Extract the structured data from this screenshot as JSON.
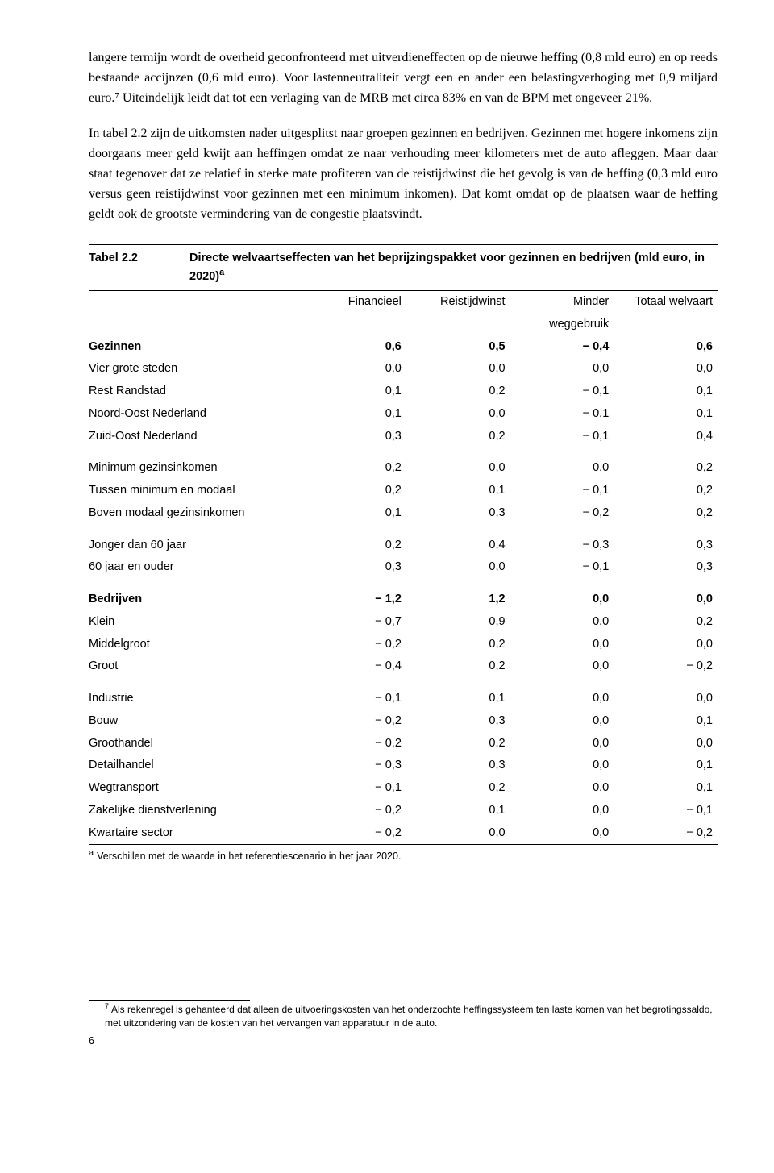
{
  "body": {
    "para1": "langere termijn wordt de overheid geconfronteerd met uitverdieneffecten op de nieuwe heffing (0,8 mld euro) en op reeds bestaande accijnzen (0,6 mld euro). Voor lastenneutraliteit vergt een en ander een belastingverhoging met 0,9 miljard euro.⁷ Uiteindelijk leidt dat tot een verlaging van de MRB met circa 83% en van de BPM met ongeveer 21%.",
    "para2": "In tabel 2.2 zijn de uitkomsten nader uitgesplitst naar groepen gezinnen en bedrijven. Gezinnen met hogere inkomens zijn doorgaans meer geld kwijt aan heffingen omdat ze naar verhouding meer kilometers met de auto afleggen. Maar daar staat tegenover dat ze relatief in sterke mate profiteren van de reistijdwinst die het gevolg is van de heffing (0,3 mld euro versus geen reistijdwinst voor gezinnen met een minimum inkomen). Dat komt omdat op de plaatsen waar de heffing geldt ook de grootste vermindering van de congestie plaatsvindt."
  },
  "table": {
    "label": "Tabel 2.2",
    "caption_l1": "Directe welvaartseffecten van het beprijzingspakket voor gezinnen en bedrijven (mld euro, in",
    "caption_l2": "2020)",
    "sup": "a",
    "head": {
      "c1": "Financieel",
      "c2": "Reistijdwinst",
      "c3a": "Minder",
      "c3b": "weggebruik",
      "c4": "Totaal welvaart"
    },
    "rows": [
      {
        "label": "Gezinnen",
        "v": [
          "0,6",
          "0,5",
          "− 0,4",
          "0,6"
        ],
        "bold": true
      },
      {
        "label": "Vier grote steden",
        "v": [
          "0,0",
          "0,0",
          "0,0",
          "0,0"
        ]
      },
      {
        "label": "Rest Randstad",
        "v": [
          "0,1",
          "0,2",
          "− 0,1",
          "0,1"
        ]
      },
      {
        "label": "Noord-Oost Nederland",
        "v": [
          "0,1",
          "0,0",
          "− 0,1",
          "0,1"
        ]
      },
      {
        "label": "Zuid-Oost Nederland",
        "v": [
          "0,3",
          "0,2",
          "− 0,1",
          "0,4"
        ]
      },
      {
        "label": "Minimum gezinsinkomen",
        "v": [
          "0,2",
          "0,0",
          "0,0",
          "0,2"
        ],
        "gap": true
      },
      {
        "label": "Tussen minimum en modaal",
        "v": [
          "0,2",
          "0,1",
          "− 0,1",
          "0,2"
        ]
      },
      {
        "label": "Boven modaal gezinsinkomen",
        "v": [
          "0,1",
          "0,3",
          "− 0,2",
          "0,2"
        ]
      },
      {
        "label": "Jonger dan 60 jaar",
        "v": [
          "0,2",
          "0,4",
          "− 0,3",
          "0,3"
        ],
        "gap": true
      },
      {
        "label": "60 jaar en ouder",
        "v": [
          "0,3",
          "0,0",
          "− 0,1",
          "0,3"
        ]
      },
      {
        "label": "Bedrijven",
        "v": [
          "− 1,2",
          "1,2",
          "0,0",
          "0,0"
        ],
        "bold": true,
        "gap": true
      },
      {
        "label": "Klein",
        "v": [
          "− 0,7",
          "0,9",
          "0,0",
          "0,2"
        ]
      },
      {
        "label": "Middelgroot",
        "v": [
          "− 0,2",
          "0,2",
          "0,0",
          "0,0"
        ]
      },
      {
        "label": "Groot",
        "v": [
          "− 0,4",
          "0,2",
          "0,0",
          "− 0,2"
        ]
      },
      {
        "label": "Industrie",
        "v": [
          "− 0,1",
          "0,1",
          "0,0",
          "0,0"
        ],
        "gap": true
      },
      {
        "label": "Bouw",
        "v": [
          "− 0,2",
          "0,3",
          "0,0",
          "0,1"
        ]
      },
      {
        "label": "Groothandel",
        "v": [
          "− 0,2",
          "0,2",
          "0,0",
          "0,0"
        ]
      },
      {
        "label": "Detailhandel",
        "v": [
          "− 0,3",
          "0,3",
          "0,0",
          "0,1"
        ]
      },
      {
        "label": "Wegtransport",
        "v": [
          "− 0,1",
          "0,2",
          "0,0",
          "0,1"
        ]
      },
      {
        "label": "Zakelijke dienstverlening",
        "v": [
          "− 0,2",
          "0,1",
          "0,0",
          "− 0,1"
        ]
      },
      {
        "label": "Kwartaire sector",
        "v": [
          "− 0,2",
          "0,0",
          "0,0",
          "− 0,2"
        ]
      }
    ],
    "footnote_sup": "a",
    "footnote": "Verschillen met de waarde in het referentiescenario in het jaar 2020."
  },
  "bottom": {
    "sup": "7",
    "text": "Als rekenregel is gehanteerd dat alleen de uitvoeringskosten van het onderzochte heffingssysteem ten laste komen van het begrotingssaldo, met uitzondering van de kosten van het vervangen van apparatuur in de auto.",
    "page": "6"
  }
}
